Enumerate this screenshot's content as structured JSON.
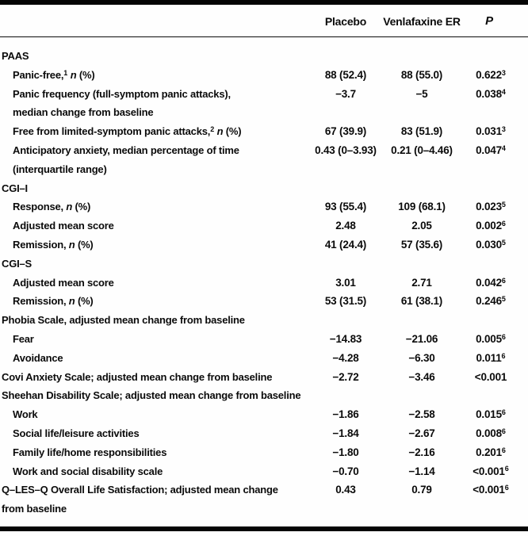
{
  "colors": {
    "background": "#fefefe",
    "text": "#0b0b0b",
    "rule": "#050505"
  },
  "header": {
    "columns": [
      {
        "label": ""
      },
      {
        "label": "Placebo"
      },
      {
        "label": "Venlafaxine ER"
      },
      {
        "label": "P",
        "italic": true
      }
    ]
  },
  "table": {
    "rows": [
      {
        "name": "paas-section",
        "indent": 0,
        "label": [
          {
            "t": "PAAS"
          }
        ]
      },
      {
        "name": "panic-free",
        "indent": 1,
        "label": [
          {
            "t": "Panic-free,"
          },
          {
            "sup": "1"
          },
          {
            "t": " "
          },
          {
            "i": "n"
          },
          {
            "t": " (%)"
          }
        ],
        "placebo": "88 (52.4)",
        "venlafaxine": "88 (55.0)",
        "p": "0.622",
        "p_sup": "3"
      },
      {
        "name": "panic-frequency",
        "indent": 1,
        "label": [
          {
            "t": "Panic frequency (full-symptom panic attacks),"
          },
          {
            "br": true
          },
          {
            "t": "median change from baseline"
          }
        ],
        "placebo": "−3.7",
        "venlafaxine": "−5",
        "p": "0.038",
        "p_sup": "4"
      },
      {
        "name": "free-from-limited-symptom",
        "indent": 1,
        "label": [
          {
            "t": "Free from limited-symptom panic attacks,"
          },
          {
            "sup": "2"
          },
          {
            "t": " "
          },
          {
            "i": "n"
          },
          {
            "t": " (%)"
          }
        ],
        "placebo": "67 (39.9)",
        "venlafaxine": "83 (51.9)",
        "p": "0.031",
        "p_sup": "3"
      },
      {
        "name": "anticipatory-anxiety",
        "indent": 1,
        "label": [
          {
            "t": "Anticipatory anxiety, median percentage of time"
          },
          {
            "br": true
          },
          {
            "t": "(interquartile range)"
          }
        ],
        "placebo": "0.43 (0–3.93)",
        "venlafaxine": "0.21 (0–4.46)",
        "p": "0.047",
        "p_sup": "4"
      },
      {
        "name": "cgi-i-section",
        "indent": 0,
        "label": [
          {
            "t": "CGI–I"
          }
        ]
      },
      {
        "name": "cgi-i-response",
        "indent": 1,
        "label": [
          {
            "t": "Response, "
          },
          {
            "i": "n"
          },
          {
            "t": " (%)"
          }
        ],
        "placebo": "93 (55.4)",
        "venlafaxine": "109 (68.1)",
        "p": "0.023",
        "p_sup": "5"
      },
      {
        "name": "cgi-i-adjusted-mean-score",
        "indent": 1,
        "label": [
          {
            "t": "Adjusted mean score"
          }
        ],
        "placebo": "2.48",
        "venlafaxine": "2.05",
        "p": "0.002",
        "p_sup": "6"
      },
      {
        "name": "cgi-i-remission",
        "indent": 1,
        "label": [
          {
            "t": "Remission, "
          },
          {
            "i": "n"
          },
          {
            "t": " (%)"
          }
        ],
        "placebo": "41 (24.4)",
        "venlafaxine": "57 (35.6)",
        "p": "0.030",
        "p_sup": "5"
      },
      {
        "name": "cgi-s-section",
        "indent": 0,
        "label": [
          {
            "t": "CGI–S"
          }
        ]
      },
      {
        "name": "cgi-s-adjusted-mean-score",
        "indent": 1,
        "label": [
          {
            "t": "Adjusted mean score"
          }
        ],
        "placebo": "3.01",
        "venlafaxine": "2.71",
        "p": "0.042",
        "p_sup": "6"
      },
      {
        "name": "cgi-s-remission",
        "indent": 1,
        "label": [
          {
            "t": "Remission, "
          },
          {
            "i": "n"
          },
          {
            "t": " (%)"
          }
        ],
        "placebo": "53 (31.5)",
        "venlafaxine": "61 (38.1)",
        "p": "0.246",
        "p_sup": "5"
      },
      {
        "name": "phobia-scale-section",
        "indent": 0,
        "label": [
          {
            "t": "Phobia Scale, adjusted mean change from baseline"
          }
        ]
      },
      {
        "name": "phobia-fear",
        "indent": 1,
        "label": [
          {
            "t": "Fear"
          }
        ],
        "placebo": "−14.83",
        "venlafaxine": "−21.06",
        "p": "0.005",
        "p_sup": "6"
      },
      {
        "name": "phobia-avoidance",
        "indent": 1,
        "label": [
          {
            "t": "Avoidance"
          }
        ],
        "placebo": "−4.28",
        "venlafaxine": "−6.30",
        "p": "0.011",
        "p_sup": "6"
      },
      {
        "name": "covi-anxiety-scale",
        "indent": 0,
        "label": [
          {
            "t": "Covi Anxiety Scale; adjusted mean change from baseline"
          }
        ],
        "placebo": "−2.72",
        "venlafaxine": "−3.46",
        "p": "<0.001"
      },
      {
        "name": "sheehan-section",
        "indent": 0,
        "label": [
          {
            "t": "Sheehan Disability Scale; adjusted mean change from baseline"
          }
        ]
      },
      {
        "name": "sheehan-work",
        "indent": 1,
        "label": [
          {
            "t": "Work"
          }
        ],
        "placebo": "−1.86",
        "venlafaxine": "−2.58",
        "p": "0.015",
        "p_sup": "6"
      },
      {
        "name": "sheehan-social-life",
        "indent": 1,
        "label": [
          {
            "t": "Social life/leisure activities"
          }
        ],
        "placebo": "−1.84",
        "venlafaxine": "−2.67",
        "p": "0.008",
        "p_sup": "6"
      },
      {
        "name": "sheehan-family-life",
        "indent": 1,
        "label": [
          {
            "t": "Family life/home responsibilities"
          }
        ],
        "placebo": "−1.80",
        "venlafaxine": "−2.16",
        "p": "0.201",
        "p_sup": "6"
      },
      {
        "name": "sheehan-work-social-disability",
        "indent": 1,
        "label": [
          {
            "t": "Work and social disability scale"
          }
        ],
        "placebo": "−0.70",
        "venlafaxine": "−1.14",
        "p": "<0.001",
        "p_sup": "6"
      },
      {
        "name": "q-les-q",
        "indent": 0,
        "label": [
          {
            "t": "Q–LES–Q Overall Life Satisfaction; adjusted mean change"
          },
          {
            "br": true
          },
          {
            "t": "from baseline"
          }
        ],
        "placebo": "0.43",
        "venlafaxine": "0.79",
        "p": "<0.001",
        "p_sup": "6"
      }
    ]
  }
}
